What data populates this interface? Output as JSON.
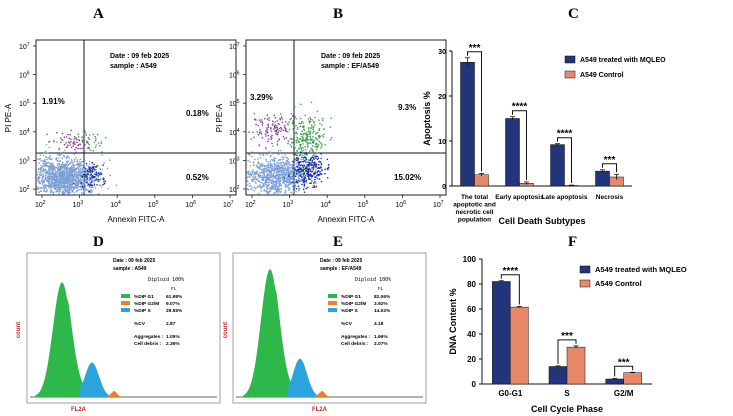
{
  "colors": {
    "treated": "#22357a",
    "control": "#e8896a",
    "flow_main": "#7ca0d6",
    "flow_dark": "#1d2f9e",
    "flow_purple": "#8a3d99",
    "flow_green": "#3aa64a",
    "hist_green": "#2fb84a",
    "hist_orange": "#e8822a",
    "hist_blue": "#2ba3dc",
    "axis_red": "#cc2222"
  },
  "panels": [
    {
      "letter": "A",
      "kind": "dotplot",
      "date": "Date : 09 feb 2025",
      "sample": "sample : A549",
      "q_ul": "1.91%",
      "q_ur": "0.18%",
      "q_lr": "0.52%",
      "q_ll": "",
      "xlabel": "Annexin FITC-A",
      "ylabel": "PI PE-A"
    },
    {
      "letter": "B",
      "kind": "dotplot",
      "date": "Date : 09 feb 2025",
      "sample": "sample :  EF/A549",
      "q_ul": "3.29%",
      "q_ur": "9.3%",
      "q_lr": "15.02%",
      "q_ll": "",
      "xlabel": "Annexin FITC-A",
      "ylabel": "PI PE-A"
    },
    {
      "letter": "D",
      "kind": "histogram",
      "date": "Date : 09 feb 2025",
      "sample": "sample : A549",
      "header": "Diploid 100%",
      "fl": "FL",
      "legend": [
        {
          "label": "%DIP G1",
          "value": "61.98%"
        },
        {
          "label": "%DIP G2/M",
          "value": "9.07%"
        },
        {
          "label": "%DIP S",
          "value": "29.55%"
        }
      ],
      "cv_label": "%CV",
      "cv_value": "2.87",
      "aggregates_label": "Aggregates :",
      "aggregates_value": "1.05%",
      "debris_label": "Cell debris :",
      "debris_value": "2.36%",
      "xlabel": "FL2A",
      "ylabel": "count"
    },
    {
      "letter": "E",
      "kind": "histogram",
      "date": "Date : 09 feb 2025",
      "sample": "sample :  EF/A549",
      "header": "Diploid 100%",
      "fl": "FL",
      "legend": [
        {
          "label": "%DIP G1",
          "value": "82.06%"
        },
        {
          "label": "%DIP G2/M",
          "value": "3.92%"
        },
        {
          "label": "%DIP S",
          "value": "14.02%"
        }
      ],
      "cv_label": "%CV",
      "cv_value": "4.18",
      "aggregates_label": "Aggregates :",
      "aggregates_value": "1.66%",
      "debris_label": "Cell debris :",
      "debris_value": "2.07%",
      "xlabel": "FL2A",
      "ylabel": "count"
    }
  ],
  "chart_data": [
    {
      "type": "bar",
      "panel": "C",
      "categories": [
        "The total apoptotic and necrotic cell population",
        "Early apoptosis",
        "Late apoptosis",
        "Necrosis"
      ],
      "series": [
        {
          "name": "A549 treated with MQLEO",
          "values": [
            27.5,
            15,
            9.2,
            3.3
          ],
          "errors": [
            1.0,
            0.4,
            0.2,
            0.3
          ]
        },
        {
          "name": "A549 Control",
          "values": [
            2.5,
            0.6,
            0.1,
            2.0
          ],
          "errors": [
            0.3,
            0.3,
            0.1,
            0.6
          ]
        }
      ],
      "significance": [
        "***",
        "****",
        "****",
        "***"
      ],
      "xlabel": "Cell Death Subtypes",
      "ylabel": "Apoptosis %",
      "ylim": [
        0,
        30
      ],
      "yticks": [
        "0",
        "10",
        "20",
        "30"
      ],
      "legend_position": "top-right",
      "grid": false
    },
    {
      "type": "bar",
      "panel": "F",
      "categories": [
        "G0-G1",
        "S",
        "G2/M"
      ],
      "series": [
        {
          "name": "A549 treated with MQLEO",
          "values": [
            82,
            14,
            4
          ],
          "errors": [
            0.6,
            0.5,
            0.4
          ]
        },
        {
          "name": "A549 Control",
          "values": [
            61.5,
            29.5,
            9
          ],
          "errors": [
            0.5,
            1.0,
            0.4
          ]
        }
      ],
      "significance": [
        "****",
        "***",
        "***"
      ],
      "xlabel": "Cell Cycle Phase",
      "ylabel": "DNA Content %",
      "ylim": [
        0,
        100
      ],
      "yticks": [
        "0",
        "20",
        "40",
        "60",
        "80",
        "100"
      ],
      "legend_position": "top-right",
      "grid": false
    }
  ]
}
